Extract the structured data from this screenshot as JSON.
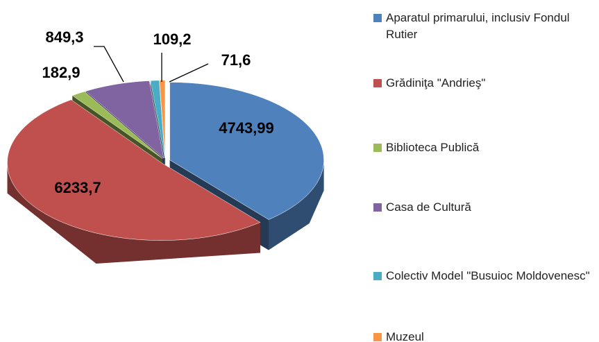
{
  "chart_data": {
    "type": "pie3d",
    "categories": [
      "Aparatul primarului, inclusiv Fondul Rutier",
      "Grădiniţa \"Andrieş\"",
      "Biblioteca Publică",
      "Casa de Cultură",
      "Colectiv Model \"Busuioc Moldovenesc\"",
      "Muzeul"
    ],
    "values": [
      4743.99,
      6233.7,
      182.9,
      849.3,
      109.2,
      71.6
    ],
    "value_labels": [
      "4743,99",
      "6233,7",
      "182,9",
      "849,3",
      "109,2",
      "71,6"
    ],
    "colors": [
      "#4f81bd",
      "#c0504d",
      "#9bbb59",
      "#8064a2",
      "#4bacc6",
      "#f79646"
    ],
    "legend": "right"
  }
}
